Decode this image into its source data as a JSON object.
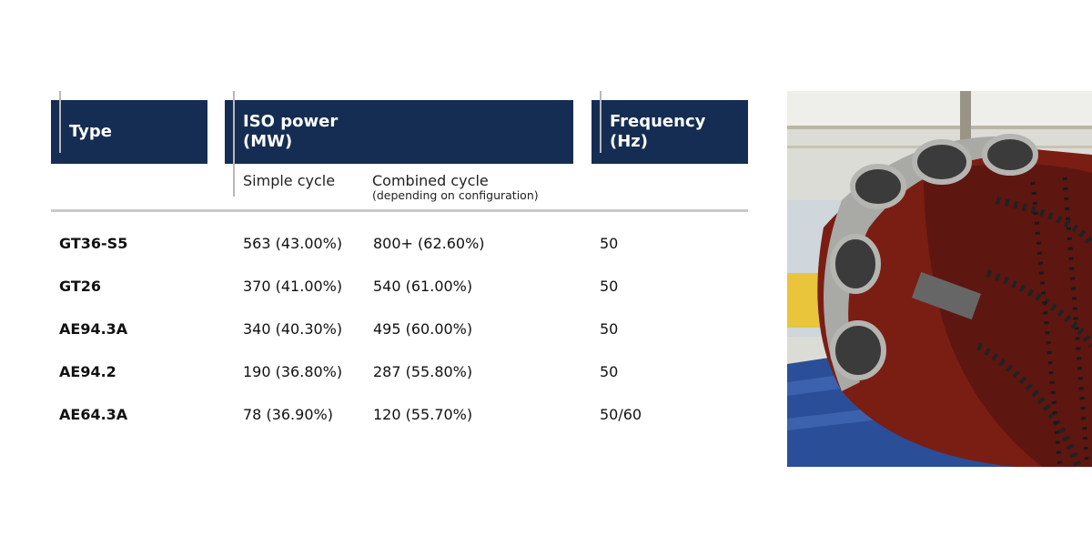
{
  "table": {
    "headers": {
      "type": "Type",
      "iso_power_line1": "ISO power",
      "iso_power_line2": "(MW)",
      "frequency_line1": "Frequency",
      "frequency_line2": "(Hz)"
    },
    "subheaders": {
      "simple": "Simple cycle",
      "combined": "Combined cycle",
      "combined_note": "(depending on configuration)"
    },
    "rows": [
      {
        "type": "GT36-S5",
        "simple": "563 (43.00%)",
        "combined": "800+ (62.60%)",
        "frequency": "50"
      },
      {
        "type": "GT26",
        "simple": "370 (41.00%)",
        "combined": "540 (61.00%)",
        "frequency": "50"
      },
      {
        "type": "AE94.3A",
        "simple": "340 (40.30%)",
        "combined": "495 (60.00%)",
        "frequency": "50"
      },
      {
        "type": "AE94.2",
        "simple": "190 (36.80%)",
        "combined": "287 (55.80%)",
        "frequency": "50"
      },
      {
        "type": "AE64.3A",
        "simple": "78 (36.90%)",
        "combined": "120 (55.70%)",
        "frequency": "50/60"
      }
    ]
  },
  "colors": {
    "header_bg": "#152d52",
    "header_text": "#ffffff",
    "rule": "#c9c9c9"
  },
  "photo": {
    "icon": "gas-turbine-photo"
  }
}
